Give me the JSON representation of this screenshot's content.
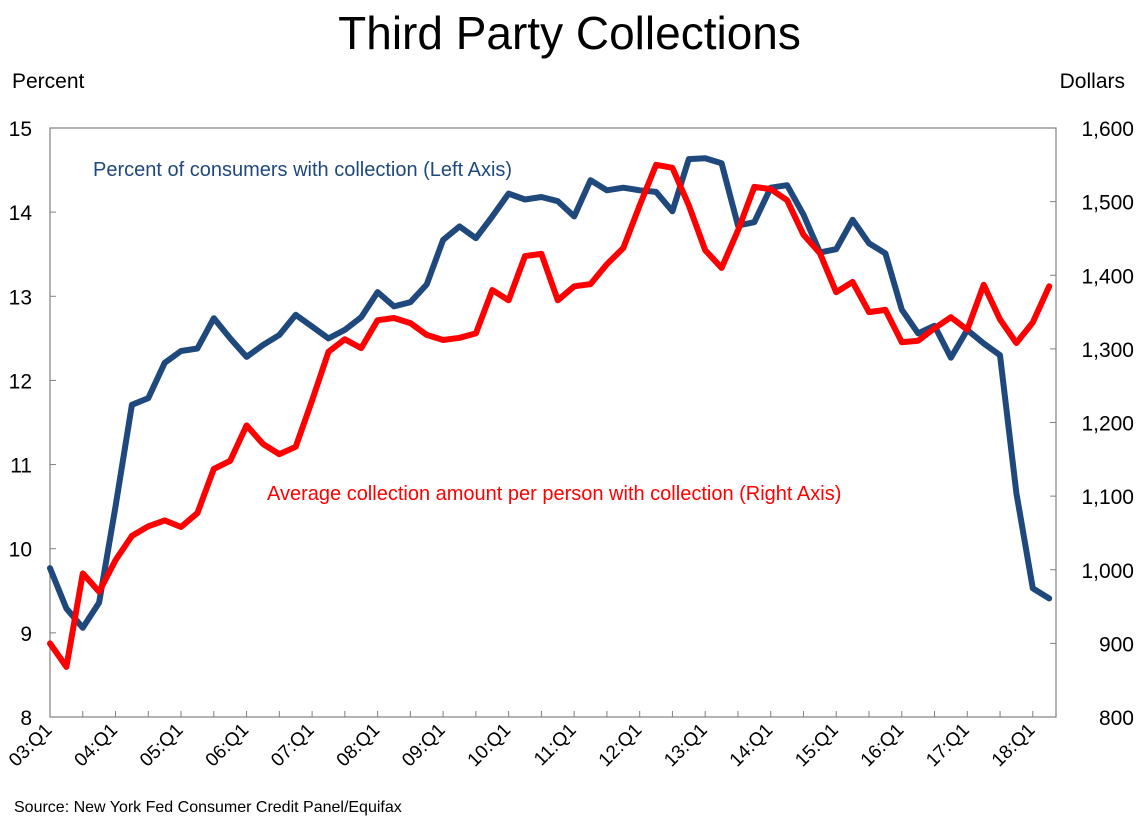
{
  "chart_data": {
    "type": "line",
    "title": "Third Party Collections",
    "left_axis": {
      "label": "Percent",
      "ylim": [
        8,
        15
      ],
      "ticks": [
        "8",
        "9",
        "10",
        "11",
        "12",
        "13",
        "14",
        "15"
      ],
      "tick_values": [
        8,
        9,
        10,
        11,
        12,
        13,
        14,
        15
      ]
    },
    "right_axis": {
      "label": "Dollars",
      "ylim": [
        800,
        1600
      ],
      "ticks": [
        "800",
        "900",
        "1,000",
        "1,100",
        "1,200",
        "1,300",
        "1,400",
        "1,500",
        "1,600"
      ],
      "tick_values": [
        800,
        900,
        1000,
        1100,
        1200,
        1300,
        1400,
        1500,
        1600
      ]
    },
    "x_tick_labels": [
      "03:Q1",
      "04:Q1",
      "05:Q1",
      "06:Q1",
      "07:Q1",
      "08:Q1",
      "09:Q1",
      "10:Q1",
      "11:Q1",
      "12:Q1",
      "13:Q1",
      "14:Q1",
      "15:Q1",
      "16:Q1",
      "17:Q1",
      "18:Q1"
    ],
    "x": [
      "03:Q1",
      "03:Q2",
      "03:Q3",
      "03:Q4",
      "04:Q1",
      "04:Q2",
      "04:Q3",
      "04:Q4",
      "05:Q1",
      "05:Q2",
      "05:Q3",
      "05:Q4",
      "06:Q1",
      "06:Q2",
      "06:Q3",
      "06:Q4",
      "07:Q1",
      "07:Q2",
      "07:Q3",
      "07:Q4",
      "08:Q1",
      "08:Q2",
      "08:Q3",
      "08:Q4",
      "09:Q1",
      "09:Q2",
      "09:Q3",
      "09:Q4",
      "10:Q1",
      "10:Q2",
      "10:Q3",
      "10:Q4",
      "11:Q1",
      "11:Q2",
      "11:Q3",
      "11:Q4",
      "12:Q1",
      "12:Q2",
      "12:Q3",
      "12:Q4",
      "13:Q1",
      "13:Q2",
      "13:Q3",
      "13:Q4",
      "14:Q1",
      "14:Q2",
      "14:Q3",
      "14:Q4",
      "15:Q1",
      "15:Q2",
      "15:Q3",
      "15:Q4",
      "16:Q1",
      "16:Q2",
      "16:Q3",
      "16:Q4",
      "17:Q1",
      "17:Q2",
      "17:Q3",
      "17:Q4",
      "18:Q1",
      "18:Q2"
    ],
    "series": [
      {
        "name": "Percent of consumers with collection (Left Axis)",
        "axis": "left",
        "color": "#1F497D",
        "values": [
          9.77,
          9.29,
          9.06,
          9.36,
          10.5,
          11.71,
          11.79,
          12.21,
          12.35,
          12.38,
          12.74,
          12.5,
          12.28,
          12.42,
          12.54,
          12.78,
          12.64,
          12.5,
          12.6,
          12.75,
          13.05,
          12.88,
          12.93,
          13.14,
          13.67,
          13.83,
          13.69,
          13.95,
          14.22,
          14.15,
          14.18,
          14.13,
          13.95,
          14.38,
          14.26,
          14.29,
          14.26,
          14.24,
          14.01,
          14.63,
          14.64,
          14.58,
          13.84,
          13.88,
          14.29,
          14.32,
          13.97,
          13.52,
          13.56,
          13.91,
          13.63,
          13.51,
          12.84,
          12.56,
          12.65,
          12.27,
          12.6,
          12.44,
          12.3,
          10.66,
          9.53,
          9.41
        ]
      },
      {
        "name": "Average collection amount per person with collection (Right Axis)",
        "axis": "right",
        "color": "#FF0000",
        "values": [
          900,
          868,
          995,
          970,
          1013,
          1046,
          1059,
          1067,
          1058,
          1077,
          1137,
          1148,
          1196,
          1171,
          1157,
          1167,
          1230,
          1296,
          1313,
          1301,
          1339,
          1342,
          1335,
          1319,
          1312,
          1315,
          1321,
          1380,
          1366,
          1426,
          1429,
          1366,
          1385,
          1388,
          1415,
          1437,
          1495,
          1550,
          1546,
          1495,
          1434,
          1410,
          1461,
          1520,
          1517,
          1502,
          1455,
          1430,
          1377,
          1391,
          1350,
          1353,
          1309,
          1311,
          1328,
          1343,
          1326,
          1387,
          1340,
          1308,
          1336,
          1385
        ]
      }
    ],
    "annotations": [
      {
        "text": "Percent of consumers with collection (Left Axis)",
        "series": 0
      },
      {
        "text": "Average collection amount per person with collection (Right Axis)",
        "series": 1
      }
    ],
    "grid": false,
    "legend": "inline annotations",
    "source": "Source: New York Fed Consumer Credit Panel/Equifax"
  }
}
